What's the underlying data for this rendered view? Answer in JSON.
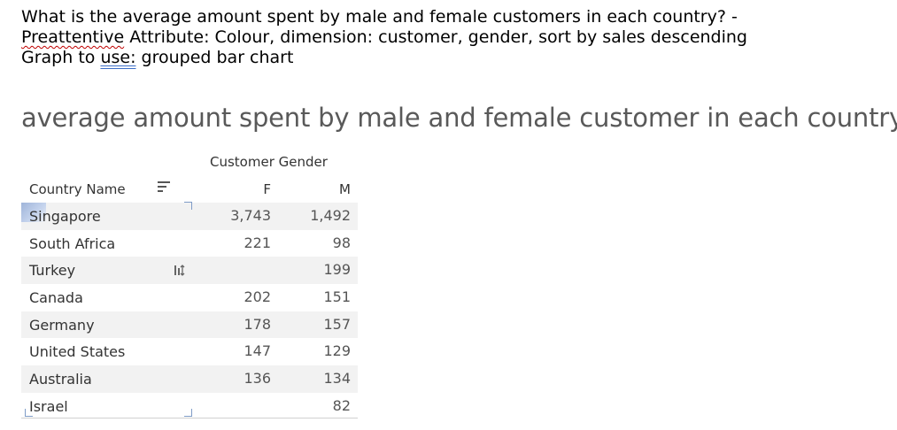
{
  "question": {
    "line1": "What is the average amount spent by male and female customers in each country? -",
    "line2_a": "Preattentive",
    "line2_b": " Attribute: Colour, dimension: customer, gender, sort by sales descending",
    "line3_a": "Graph to ",
    "line3_b": "use:",
    "line3_c": " grouped bar chart"
  },
  "viz": {
    "title": "average amount spent by male and female customer in each country",
    "column_group_header": "Customer Gender",
    "row_header": "Country Name",
    "columns": [
      "F",
      "M"
    ]
  },
  "chart_data": {
    "type": "table",
    "title": "average amount spent by male and female customer in each country",
    "columns": [
      "Country Name",
      "F",
      "M"
    ],
    "rows": [
      {
        "country": "Singapore",
        "F": "3,743",
        "M": "1,492"
      },
      {
        "country": "South Africa",
        "F": "221",
        "M": "98"
      },
      {
        "country": "Turkey",
        "F": "",
        "M": "199"
      },
      {
        "country": "Canada",
        "F": "202",
        "M": "151"
      },
      {
        "country": "Germany",
        "F": "178",
        "M": "157"
      },
      {
        "country": "United States",
        "F": "147",
        "M": "129"
      },
      {
        "country": "Australia",
        "F": "136",
        "M": "134"
      },
      {
        "country": "Israel",
        "F": "",
        "M": "82"
      }
    ]
  },
  "icons": {
    "sort": "sort-icon",
    "cursor": "reorder-cursor-icon"
  }
}
